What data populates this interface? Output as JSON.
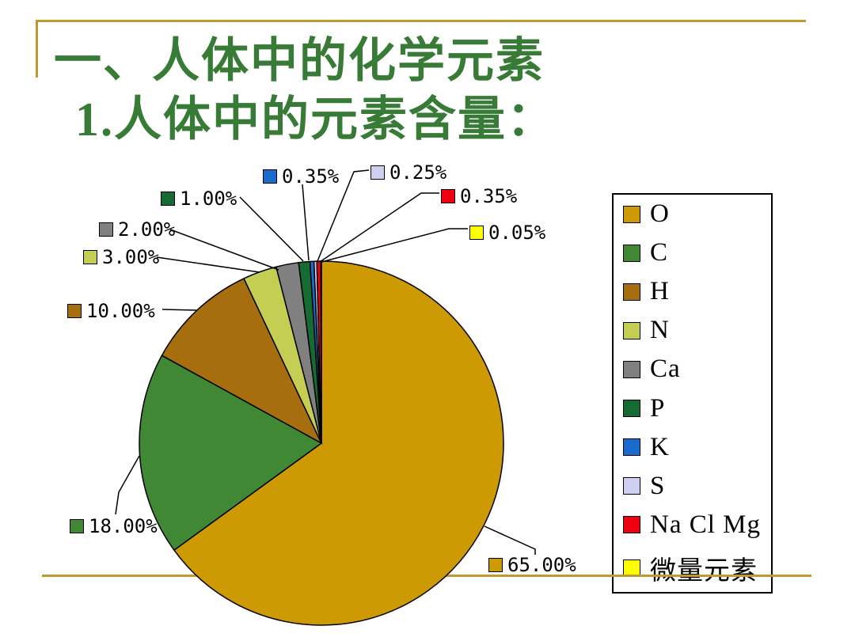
{
  "slide": {
    "title": "一、人体中的化学元素",
    "subtitle": "1.人体中的元素含量：",
    "colors": {
      "title_text": "#377B37",
      "accent_line": "#C3992F",
      "background": "#FFFFFF"
    }
  },
  "chart_data": {
    "type": "pie",
    "title": "人体中的元素含量",
    "direction": "clockwise",
    "start_angle_deg": 0,
    "legend_position": "right",
    "slices": [
      {
        "name": "O",
        "value": 65.0,
        "label": "65.00%",
        "color": "#CE9A04"
      },
      {
        "name": "C",
        "value": 18.0,
        "label": "18.00%",
        "color": "#418834"
      },
      {
        "name": "H",
        "value": 10.0,
        "label": "10.00%",
        "color": "#A66E0E"
      },
      {
        "name": "N",
        "value": 3.0,
        "label": "3.00%",
        "color": "#C3CE52"
      },
      {
        "name": "Ca",
        "value": 2.0,
        "label": "2.00%",
        "color": "#808080"
      },
      {
        "name": "P",
        "value": 1.0,
        "label": "1.00%",
        "color": "#166B33"
      },
      {
        "name": "K",
        "value": 0.35,
        "label": "0.35%",
        "color": "#1A6BCE"
      },
      {
        "name": "S",
        "value": 0.25,
        "label": "0.25%",
        "color": "#CFCFF2"
      },
      {
        "name": "Na Cl Mg",
        "value": 0.35,
        "label": "0.35%",
        "color": "#EE0011"
      },
      {
        "name": "微量元素",
        "value": 0.05,
        "label": "0.05%",
        "color": "#FFFF00"
      }
    ]
  }
}
